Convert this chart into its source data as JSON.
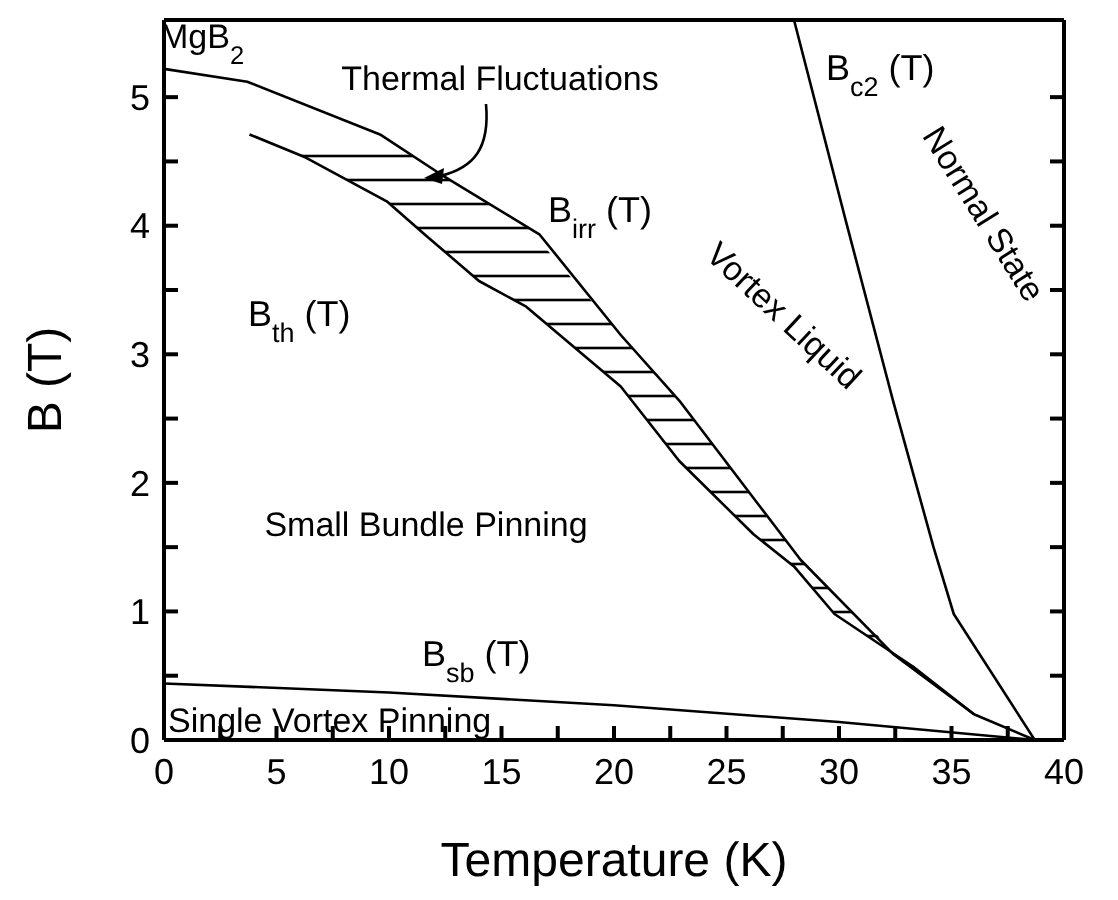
{
  "chart_data": {
    "type": "line",
    "xlabel": "Temperature (K)",
    "ylabel": "B (T)",
    "xlim": [
      0,
      40
    ],
    "xticks": [
      0,
      {
        "value": 2.5,
        "label": null
      },
      5,
      {
        "value": 7.5,
        "label": null
      },
      10,
      {
        "value": 12.5,
        "label": null
      },
      15,
      {
        "value": 17.5,
        "label": null
      },
      20,
      {
        "value": 22.5,
        "label": null
      },
      25,
      {
        "value": 27.5,
        "label": null
      },
      30,
      {
        "value": 32.5,
        "label": null
      },
      35,
      {
        "value": 37.5,
        "label": null
      },
      40
    ],
    "ylim": [
      0,
      5.6
    ],
    "yticks": [
      0,
      {
        "value": 0.5,
        "label": null
      },
      1,
      {
        "value": 1.5,
        "label": null
      },
      2,
      {
        "value": 2.5,
        "label": null
      },
      3,
      {
        "value": 3.5,
        "label": null
      },
      4,
      {
        "value": 4.5,
        "label": null
      },
      5
    ],
    "marker": "none",
    "line_style": "solid",
    "series": [
      {
        "name": "B$_{irr}$ (T)",
        "color": "#000000",
        "x": [
          0,
          3.7,
          9.6,
          12.3,
          16.7,
          20.3,
          22.9,
          28.3,
          32.4,
          36.0,
          38.7
        ],
        "values": [
          5.22,
          5.12,
          4.71,
          4.4,
          3.93,
          3.15,
          2.64,
          1.4,
          0.67,
          0.2,
          0
        ]
      },
      {
        "name": "B$_{th}$ (T)",
        "color": "#000000",
        "x": [
          3.8,
          6.3,
          9.9,
          11.6,
          14.0,
          16.1,
          20.3,
          22.9,
          26.2,
          28.0,
          29.8,
          33.3,
          36.0
        ],
        "values": [
          4.71,
          4.53,
          4.19,
          3.93,
          3.57,
          3.37,
          2.75,
          2.17,
          1.6,
          1.35,
          0.98,
          0.57,
          0.2
        ],
        "lower": [
          4.71,
          4.53,
          4.19,
          3.93,
          3.57,
          3.37,
          2.75,
          2.17,
          1.6,
          1.35,
          0.98,
          0.57,
          0.2
        ],
        "upper": [
          4.71,
          4.71,
          4.68,
          4.48,
          4.22,
          4.0,
          3.15,
          2.64,
          1.87,
          1.47,
          1.13,
          0.55,
          0.2
        ]
      },
      {
        "name": "B$_{c2}$ (T)",
        "color": "#000000",
        "x": [
          28.0,
          30.3,
          32.4,
          34.2,
          35.1,
          38.7
        ],
        "values": [
          5.6,
          4.04,
          2.64,
          1.5,
          0.98,
          0
        ]
      },
      {
        "name": "B$_{sb}$ (T)",
        "color": "#000000",
        "x": [
          0,
          10,
          20,
          30,
          38.7
        ],
        "values": [
          0.44,
          0.37,
          0.27,
          0.14,
          0
        ]
      }
    ],
    "annotations": [
      "MgB$_{2}$",
      "Thermal Fluctuations",
      "Vortex Liquid",
      "Normal State",
      "Small Bundle Pinning",
      "Single Vortex Pinning"
    ]
  }
}
